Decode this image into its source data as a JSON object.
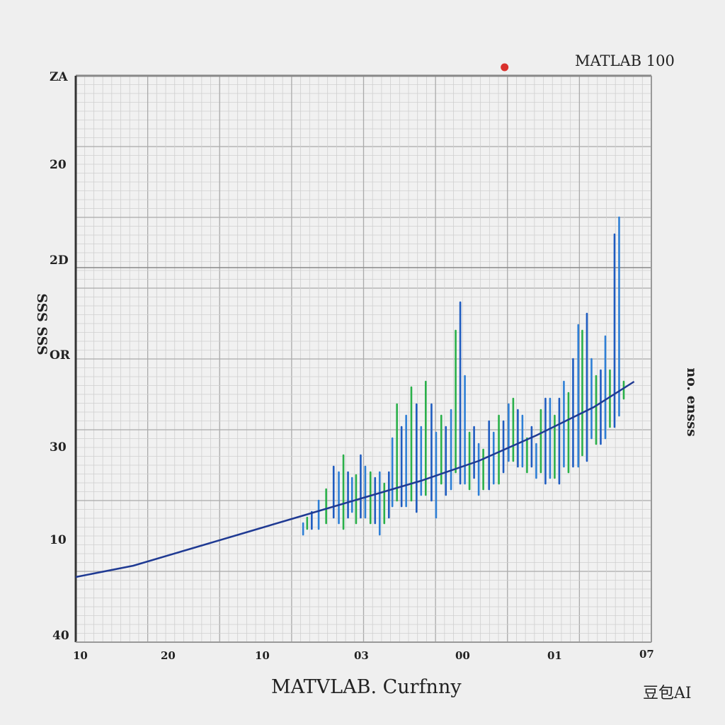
{
  "chart_data": {
    "type": "line",
    "title": "",
    "xlabel": "MATVLAB. Curfnny",
    "ylabel": "SSS SSS",
    "right_label": "no. ensss",
    "corner_label": "MATLAB 100",
    "watermark": "豆包AI",
    "xlim": [
      0,
      100
    ],
    "ylim": [
      0,
      100
    ],
    "grid": true,
    "x_ticks": [
      "10",
      "20",
      "10",
      "03",
      "00",
      "01",
      "07"
    ],
    "y_ticks": [
      "ZA",
      "20",
      "2D",
      "OR",
      "30",
      "10",
      "40"
    ],
    "series": [
      {
        "type": "line",
        "color": "#1f3a93",
        "x": [
          0,
          10,
          20,
          30,
          40,
          50,
          60,
          70,
          80,
          90,
          97
        ],
        "y": [
          11.5,
          13.5,
          16.5,
          19.5,
          22.5,
          25.5,
          28.5,
          32,
          36.5,
          41.5,
          46
        ]
      },
      {
        "type": "spikes",
        "colors": [
          "#2e7fd6",
          "#2ab04a",
          "#1f5cc0"
        ],
        "x": [
          39.5,
          40.2,
          41,
          42.2,
          43.5,
          44.8,
          45.7,
          46.5,
          47.3,
          48,
          48.7,
          49.5,
          50.3,
          51.2,
          52,
          52.8,
          53.6,
          54.4,
          55,
          55.8,
          56.6,
          57.4,
          58.3,
          59.2,
          60,
          60.8,
          61.8,
          62.6,
          63.5,
          64.3,
          65.2,
          66,
          66.8,
          67.6,
          68.4,
          69.2,
          70,
          70.8,
          71.8,
          72.6,
          73.5,
          74.3,
          75.2,
          76,
          76.8,
          77.6,
          78.4,
          79.2,
          80,
          80.8,
          81.6,
          82.4,
          83.2,
          84,
          84.8,
          85.6,
          86.4,
          87.3,
          88,
          88.8,
          89.6,
          90.4,
          91.2,
          92,
          92.8,
          93.6,
          94.4,
          95.2
        ],
        "high": [
          21,
          22,
          23,
          25,
          27,
          31,
          30,
          33,
          30,
          29,
          29.5,
          33,
          31,
          30,
          29,
          30,
          28,
          30,
          36,
          42,
          38,
          40,
          45,
          42,
          38,
          46,
          42,
          37,
          40,
          38,
          41,
          55,
          60,
          47,
          37,
          38,
          35,
          34,
          39,
          37,
          40,
          39,
          42,
          43,
          41,
          40,
          36,
          38,
          35,
          41,
          43,
          43,
          40,
          43,
          46,
          44,
          50,
          56,
          55,
          58,
          50,
          47,
          48,
          54,
          48,
          72,
          75,
          46
        ],
        "low": [
          19,
          20,
          20,
          20,
          21,
          22,
          21,
          20,
          22,
          23,
          21,
          22,
          22,
          21,
          21,
          19,
          21,
          22,
          24,
          25,
          24,
          24,
          25,
          23,
          26,
          26,
          25,
          22,
          28,
          26,
          27,
          30,
          28,
          28,
          27,
          29,
          26,
          27,
          27,
          28,
          28,
          30,
          32,
          32,
          31,
          31,
          30,
          31,
          29,
          30,
          28,
          29,
          29,
          28,
          31,
          30,
          31,
          31,
          33,
          32,
          36,
          35,
          35,
          36,
          38,
          38,
          40,
          43
        ]
      }
    ],
    "marker": {
      "x": 74.5,
      "y": 101.5,
      "color": "#d9302c"
    }
  }
}
